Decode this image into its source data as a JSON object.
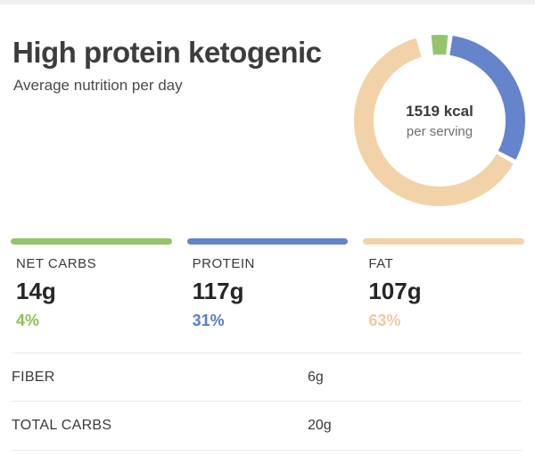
{
  "page": {
    "title": "High protein ketogenic",
    "subtitle": "Average nutrition per day"
  },
  "chart_data": {
    "type": "pie",
    "subtype": "donut",
    "center_value": "1519 kcal",
    "center_label": "per serving",
    "slices": [
      {
        "name": "net-carbs",
        "percent": 4,
        "color": "#95c56a"
      },
      {
        "name": "protein",
        "percent": 31,
        "color": "#6584cb"
      },
      {
        "name": "fat",
        "percent": 63,
        "color": "#f2d2a8"
      }
    ],
    "start": "first slice centered at 12 o'clock, clockwise",
    "gap_degrees": 3.2
  },
  "macros": [
    {
      "label": "NET CARBS",
      "value": "14g",
      "percent": "4%",
      "bar_color": "#95c56a",
      "percent_color": "#8cc159"
    },
    {
      "label": "PROTEIN",
      "value": "117g",
      "percent": "31%",
      "bar_color": "#6584cb",
      "percent_color": "#5b7cc9"
    },
    {
      "label": "FAT",
      "value": "107g",
      "percent": "63%",
      "bar_color": "#f2d2a8",
      "percent_color": "#f0c99e"
    }
  ],
  "details": [
    {
      "label": "FIBER",
      "value": "6g"
    },
    {
      "label": "TOTAL CARBS",
      "value": "20g"
    }
  ]
}
